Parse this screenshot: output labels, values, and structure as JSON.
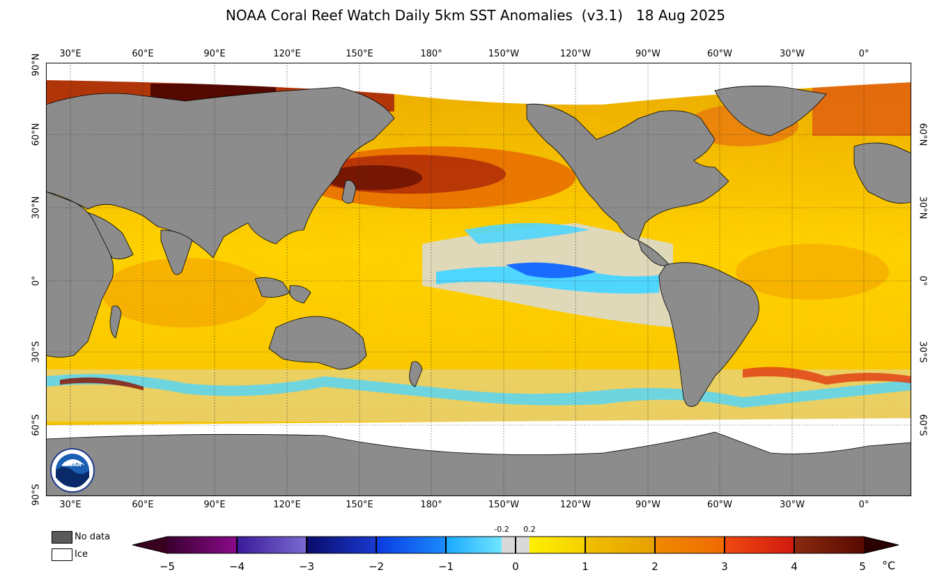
{
  "title": "NOAA Coral Reef Watch Daily 5km SST Anomalies  (v3.1)   18 Aug 2025",
  "longitude_labels": [
    "30°E",
    "60°E",
    "90°E",
    "120°E",
    "150°E",
    "180°",
    "150°W",
    "120°W",
    "90°W",
    "60°W",
    "30°W",
    "0°"
  ],
  "latitude_labels_left": [
    "90°N",
    "60°N",
    "30°N",
    "0°",
    "30°S",
    "60°S",
    "90°S"
  ],
  "latitude_labels_right": [
    "60°N",
    "30°N",
    "0°",
    "30°S",
    "60°S"
  ],
  "legend": {
    "no_data": "No data",
    "ice": "Ice"
  },
  "colorbar": {
    "ticks": [
      "−5",
      "−4",
      "−3",
      "−2",
      "−1",
      "0",
      "1",
      "2",
      "3",
      "4",
      "5"
    ],
    "small_ticks": [
      "-0.2",
      "0.2"
    ],
    "unit": "°C",
    "colors": {
      "n5": "#3a0030",
      "n4": "#7a0a8a",
      "n3": "#1a1a9a",
      "n2": "#0a2ce0",
      "n1": "#1a8cff",
      "n0": "#4fd6ff",
      "neutral": "#d9d9d9",
      "p0": "#ffe800",
      "p1": "#f0c000",
      "p2": "#f08a00",
      "p3": "#e03a10",
      "p4": "#8a1a0a",
      "p5": "#4a0000"
    }
  },
  "colors": {
    "land": "#8c8c8c",
    "ice": "#ffffff",
    "grid": "#222222"
  },
  "logo_text": "NOAA"
}
